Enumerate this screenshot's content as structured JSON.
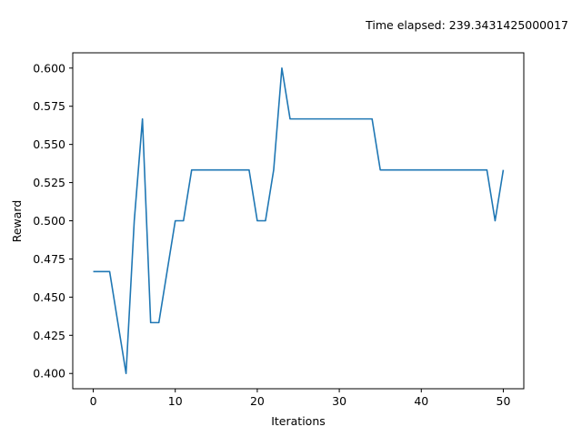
{
  "chart_data": {
    "type": "line",
    "annotation": "Time elapsed: 239.3431425000017",
    "xlabel": "Iterations",
    "ylabel": "Reward",
    "xlim": [
      -2.5,
      52.5
    ],
    "ylim": [
      0.39,
      0.61
    ],
    "x_ticks": [
      0,
      10,
      20,
      30,
      40,
      50
    ],
    "y_ticks": [
      0.4,
      0.425,
      0.45,
      0.475,
      0.5,
      0.525,
      0.55,
      0.575,
      0.6
    ],
    "y_tick_labels": [
      "0.400",
      "0.425",
      "0.450",
      "0.475",
      "0.500",
      "0.525",
      "0.550",
      "0.575",
      "0.600"
    ],
    "grid": false,
    "line_color": "#1f77b4",
    "series": [
      {
        "x": [
          0,
          1,
          2,
          3,
          4,
          5,
          6,
          7,
          8,
          9,
          10,
          11,
          12,
          13,
          14,
          15,
          16,
          17,
          18,
          19,
          20,
          21,
          22,
          23,
          24,
          25,
          26,
          27,
          28,
          29,
          30,
          31,
          32,
          33,
          34,
          35,
          36,
          37,
          38,
          39,
          40,
          41,
          42,
          43,
          44,
          45,
          46,
          47,
          48,
          49,
          50
        ],
        "values": [
          0.4667,
          0.4667,
          0.4667,
          0.4333,
          0.4,
          0.5,
          0.5667,
          0.4333,
          0.4333,
          0.4667,
          0.5,
          0.5,
          0.5333,
          0.5333,
          0.5333,
          0.5333,
          0.5333,
          0.5333,
          0.5333,
          0.5333,
          0.5,
          0.5,
          0.5333,
          0.6,
          0.5667,
          0.5667,
          0.5667,
          0.5667,
          0.5667,
          0.5667,
          0.5667,
          0.5667,
          0.5667,
          0.5667,
          0.5667,
          0.5333,
          0.5333,
          0.5333,
          0.5333,
          0.5333,
          0.5333,
          0.5333,
          0.5333,
          0.5333,
          0.5333,
          0.5333,
          0.5333,
          0.5333,
          0.5333,
          0.5,
          0.5333
        ]
      }
    ]
  }
}
